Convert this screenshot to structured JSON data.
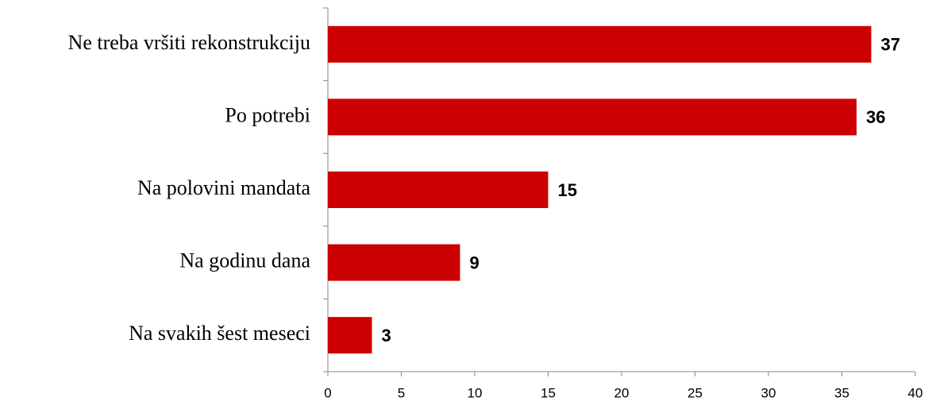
{
  "chart_data": {
    "type": "bar",
    "orientation": "horizontal",
    "categories": [
      "Ne treba vršiti rekonstrukciju",
      "Po potrebi",
      "Na polovini mandata",
      "Na godinu dana",
      "Na svakih šest meseci"
    ],
    "values": [
      37,
      36,
      15,
      9,
      3
    ],
    "color": "#cc0000",
    "xlim": [
      0,
      40
    ],
    "xticks": [
      0,
      5,
      10,
      15,
      20,
      25,
      30,
      35,
      40
    ],
    "grid": false
  }
}
